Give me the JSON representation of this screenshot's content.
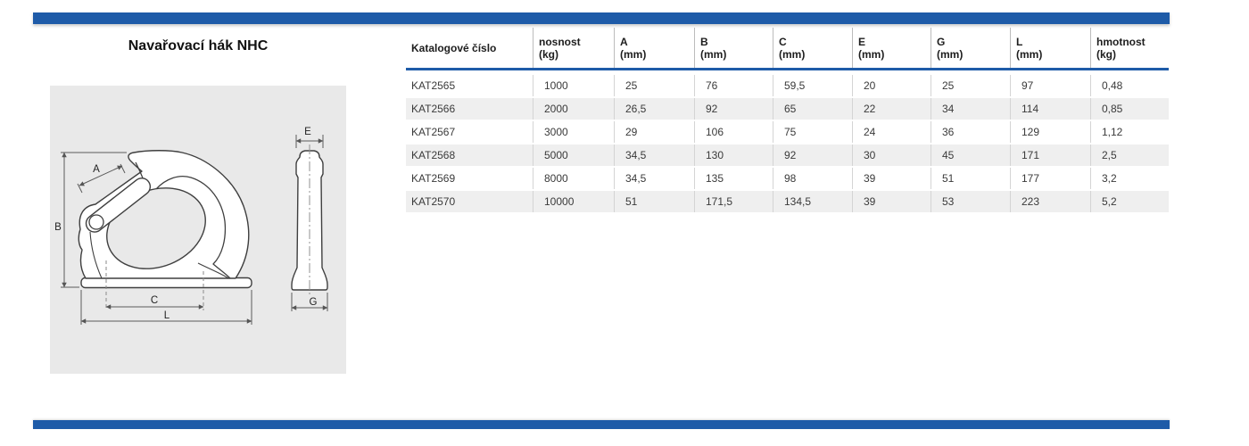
{
  "page": {
    "title": "Navařovací hák NHC"
  },
  "theme": {
    "accent_blue": "#1e5ba8",
    "alt_row_gray": "#efefef",
    "drawing_panel_gray": "#e9e9e9"
  },
  "drawing": {
    "description": "technical-drawing-weld-on-hook-side-and-front-view",
    "dim_labels": {
      "A": "A",
      "B": "B",
      "C": "C",
      "L": "L",
      "E": "E",
      "G": "G"
    }
  },
  "table": {
    "columns": [
      {
        "label": "Katalogové číslo",
        "sub": ""
      },
      {
        "label": "nosnost",
        "sub": "(kg)"
      },
      {
        "label": "A",
        "sub": "(mm)"
      },
      {
        "label": "B",
        "sub": "(mm)"
      },
      {
        "label": "C",
        "sub": "(mm)"
      },
      {
        "label": "E",
        "sub": "(mm)"
      },
      {
        "label": "G",
        "sub": "(mm)"
      },
      {
        "label": "L",
        "sub": "(mm)"
      },
      {
        "label": "hmotnost",
        "sub": "(kg)"
      }
    ],
    "rows": [
      [
        "KAT2565",
        "1000",
        "25",
        "76",
        "59,5",
        "20",
        "25",
        "97",
        "0,48"
      ],
      [
        "KAT2566",
        "2000",
        "26,5",
        "92",
        "65",
        "22",
        "34",
        "114",
        "0,85"
      ],
      [
        "KAT2567",
        "3000",
        "29",
        "106",
        "75",
        "24",
        "36",
        "129",
        "1,12"
      ],
      [
        "KAT2568",
        "5000",
        "34,5",
        "130",
        "92",
        "30",
        "45",
        "171",
        "2,5"
      ],
      [
        "KAT2569",
        "8000",
        "34,5",
        "135",
        "98",
        "39",
        "51",
        "177",
        "3,2"
      ],
      [
        "KAT2570",
        "10000",
        "51",
        "171,5",
        "134,5",
        "39",
        "53",
        "223",
        "5,2"
      ]
    ]
  }
}
